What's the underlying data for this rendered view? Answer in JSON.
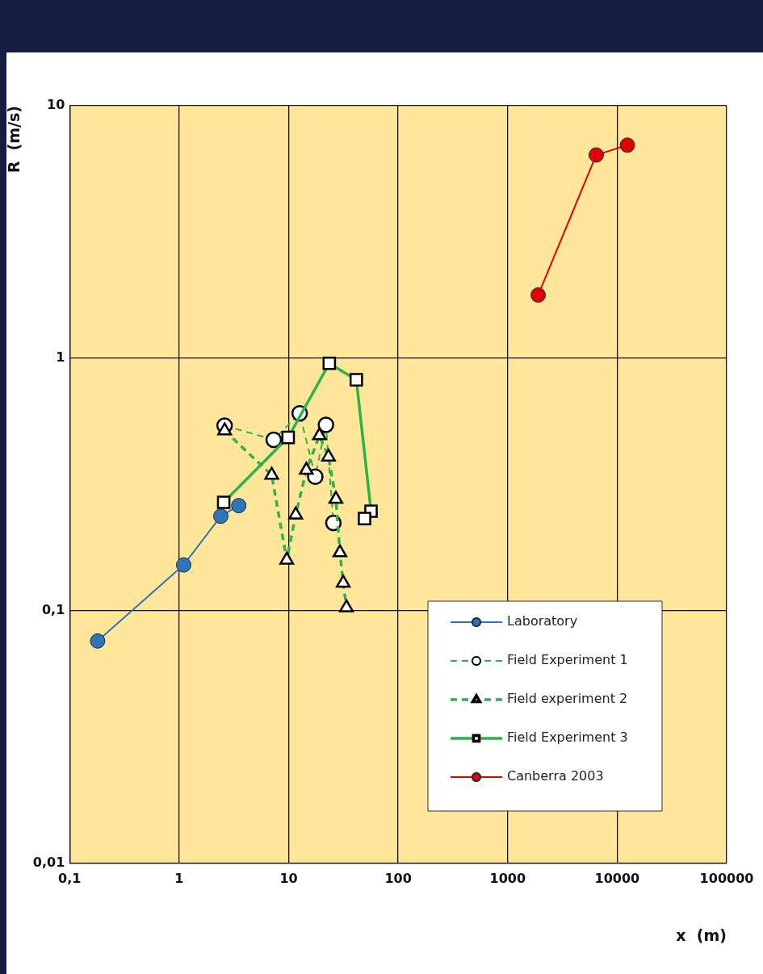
{
  "chart_data": {
    "type": "line",
    "xlabel": "x  (m)",
    "ylabel": "R  (m/s)",
    "log": "xy",
    "grid": true,
    "legend": "bottom right",
    "xlim": [
      0.1,
      100000
    ],
    "xticks": [
      {
        "value": 0.1,
        "label": "0,1"
      },
      1,
      10,
      100,
      1000,
      10000,
      100000
    ],
    "ylim": [
      0.01,
      10
    ],
    "yticks": [
      {
        "value": 0.01,
        "label": "0,01"
      },
      {
        "value": 0.1,
        "label": "0,1"
      },
      1,
      10
    ],
    "series": [
      {
        "name": "Laboratory",
        "color": "#2e75b6",
        "marker": "circle",
        "line_style": "solid",
        "x": [
          0.18,
          1.1,
          2.4,
          3.5
        ],
        "values": [
          0.076,
          0.152,
          0.237,
          0.261
        ]
      },
      {
        "name": "Field Experiment 1",
        "color": "#2eb24c",
        "marker": "circle",
        "line_style": "dashed",
        "x": [
          2.6,
          7.3,
          12.6,
          17.5,
          21.9,
          25.6
        ],
        "values": [
          0.541,
          0.476,
          0.605,
          0.34,
          0.545,
          0.223
        ]
      },
      {
        "name": "Field experiment 2",
        "color": "#2eb24c",
        "marker": "triangle",
        "line_style": "dashed",
        "x": [
          2.6,
          7,
          9.6,
          11.6,
          14.5,
          19.1,
          23.1,
          27,
          29.4,
          31.5,
          33.7
        ],
        "values": [
          0.517,
          0.345,
          0.159,
          0.24,
          0.361,
          0.494,
          0.407,
          0.277,
          0.17,
          0.129,
          0.103
        ]
      },
      {
        "name": "Field Experiment 3",
        "color": "#2eb24c",
        "marker": "square",
        "line_style": "solid",
        "x": [
          2.55,
          9.9,
          23.5,
          41.5,
          56.5,
          49.3
        ],
        "values": [
          0.269,
          0.486,
          0.955,
          0.822,
          0.248,
          0.232
        ]
      },
      {
        "name": "Canberra 2003",
        "color": "#e00000",
        "marker": "circle",
        "line_style": "solid",
        "x": [
          1900,
          6440,
          12400
        ],
        "values": [
          1.78,
          6.38,
          6.98
        ]
      }
    ]
  }
}
